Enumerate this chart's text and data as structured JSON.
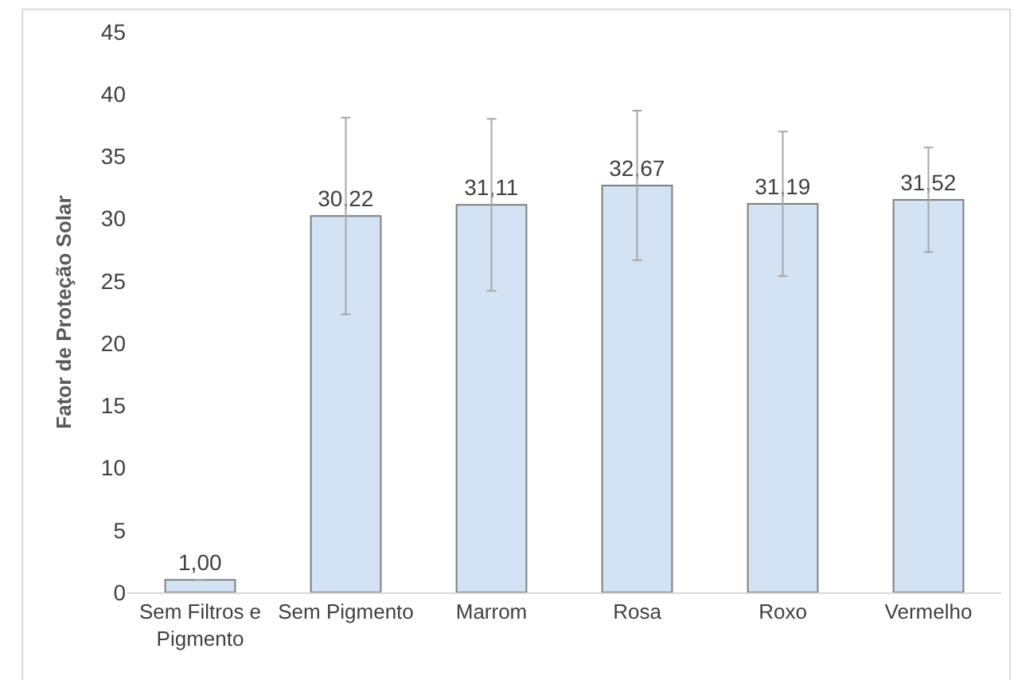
{
  "chart_data": {
    "type": "bar",
    "ylabel": "Fator de Proteção Solar",
    "categories": [
      "Sem Filtros e\nPigmento",
      "Sem Pigmento",
      "Marrom",
      "Rosa",
      "Roxo",
      "Vermelho"
    ],
    "values": [
      1.0,
      30.22,
      31.11,
      32.67,
      31.19,
      31.52
    ],
    "value_labels": [
      "1,00",
      "30,22",
      "31,11",
      "32,67",
      "31,19",
      "31,52"
    ],
    "errors": [
      null,
      7.9,
      6.9,
      6.0,
      5.8,
      4.2
    ],
    "color": "#d3e3f4",
    "ylim": [
      0,
      45
    ],
    "yticks": [
      0,
      5,
      10,
      15,
      20,
      25,
      30,
      35,
      40,
      45
    ]
  }
}
